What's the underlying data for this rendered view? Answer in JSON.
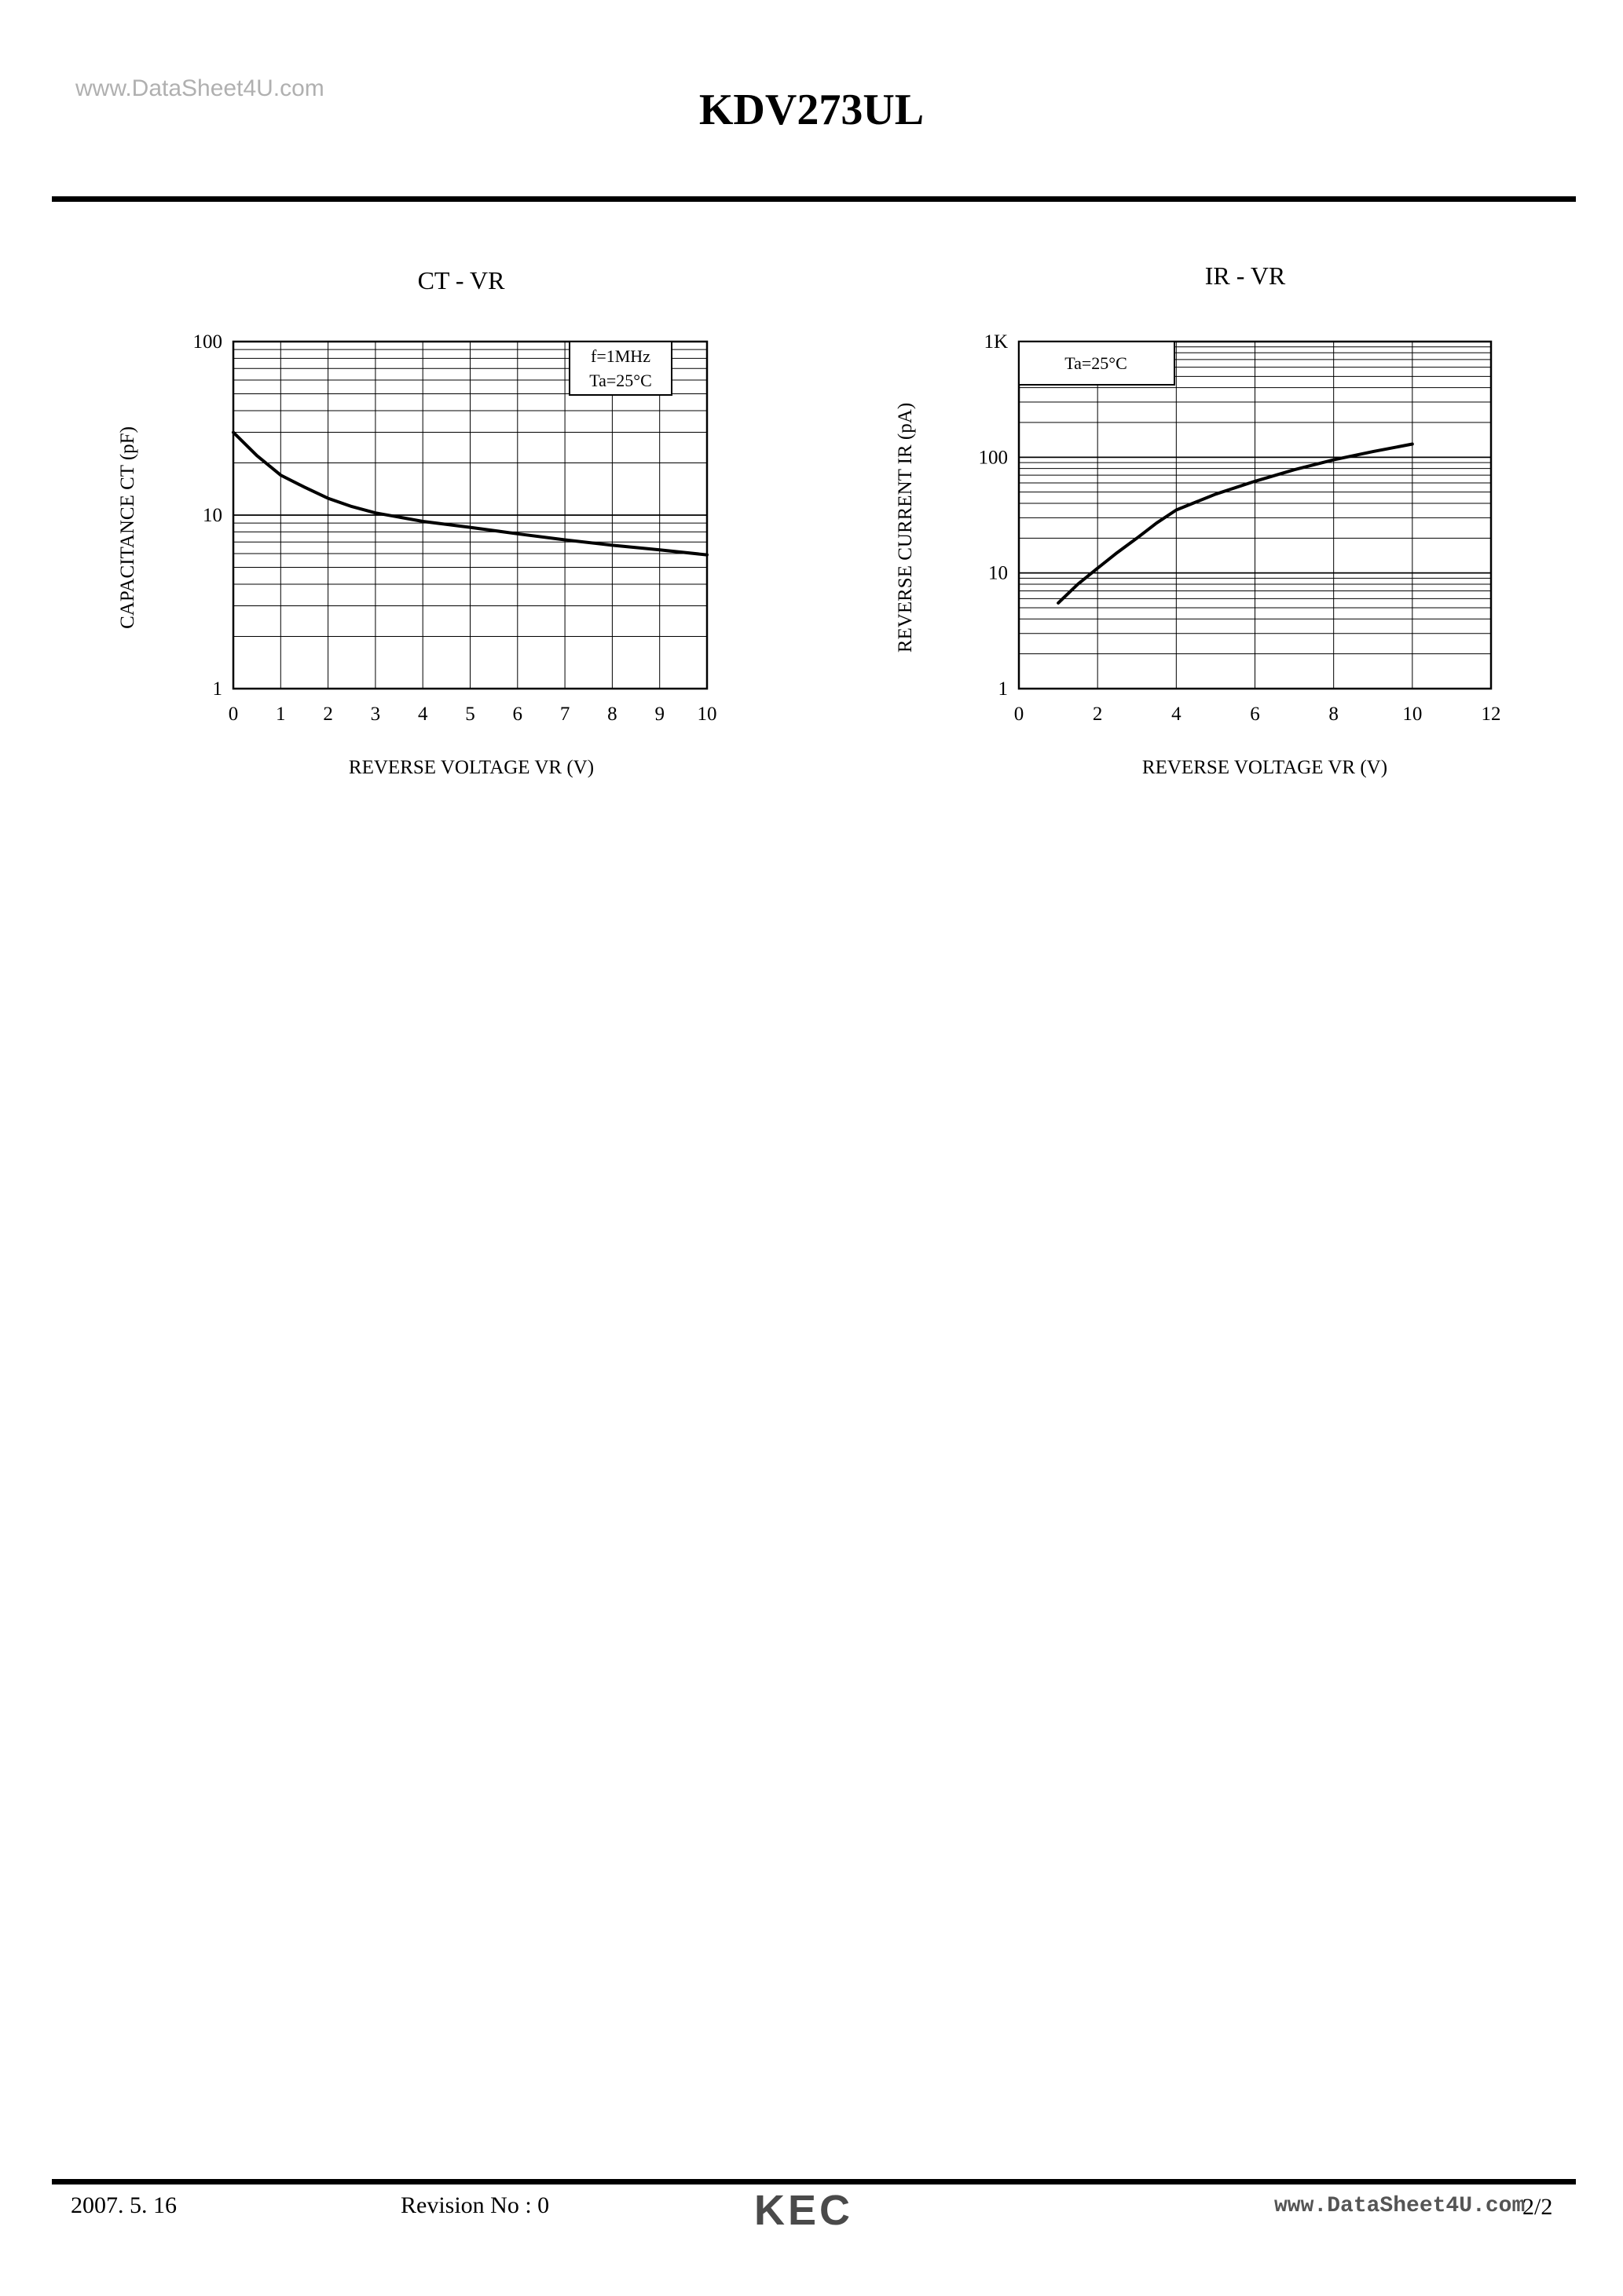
{
  "header": {
    "watermark": "www.DataSheet4U.com",
    "title": "KDV273UL"
  },
  "footer": {
    "date": "2007. 5. 16",
    "revision": "Revision No : 0",
    "logo": "KEC",
    "url": "www.DataSheet4U.com",
    "page": "2/2"
  },
  "chart_data": [
    {
      "type": "line",
      "title": "CT - VR",
      "xlabel": "REVERSE VOLTAGE VR (V)",
      "ylabel": "CAPACITANCE CT (pF)",
      "xlim": [
        0,
        10
      ],
      "ylim": [
        1,
        100
      ],
      "yscale": "log",
      "grid": true,
      "x_ticks": [
        "0",
        "1",
        "2",
        "3",
        "4",
        "5",
        "6",
        "7",
        "8",
        "9",
        "10"
      ],
      "y_ticks": [
        "1",
        "10",
        "100"
      ],
      "annotations": [
        "f=1MHz",
        "Ta=25°C"
      ],
      "series": [
        {
          "x": [
            0,
            0.5,
            1,
            1.5,
            2,
            2.5,
            3,
            4,
            5,
            6,
            7,
            8,
            9,
            10
          ],
          "y": [
            30,
            22,
            17,
            14.5,
            12.5,
            11.2,
            10.3,
            9.2,
            8.5,
            7.8,
            7.2,
            6.7,
            6.3,
            5.9
          ]
        }
      ]
    },
    {
      "type": "line",
      "title": "IR - VR",
      "xlabel": "REVERSE VOLTAGE VR (V)",
      "ylabel": "REVERSE CURRENT IR (pA)",
      "xlim": [
        0,
        12
      ],
      "ylim": [
        1,
        1000
      ],
      "yscale": "log",
      "grid": true,
      "x_ticks": [
        "0",
        "2",
        "4",
        "6",
        "8",
        "10",
        "12"
      ],
      "y_ticks": [
        "1",
        "10",
        "100",
        "1K"
      ],
      "annotations": [
        "Ta=25°C"
      ],
      "series": [
        {
          "x": [
            1,
            1.5,
            2,
            2.5,
            3,
            3.5,
            4,
            5,
            6,
            7,
            8,
            9,
            10
          ],
          "y": [
            5.5,
            8,
            11,
            15,
            20,
            27,
            35,
            48,
            62,
            78,
            95,
            112,
            130
          ]
        }
      ]
    }
  ]
}
